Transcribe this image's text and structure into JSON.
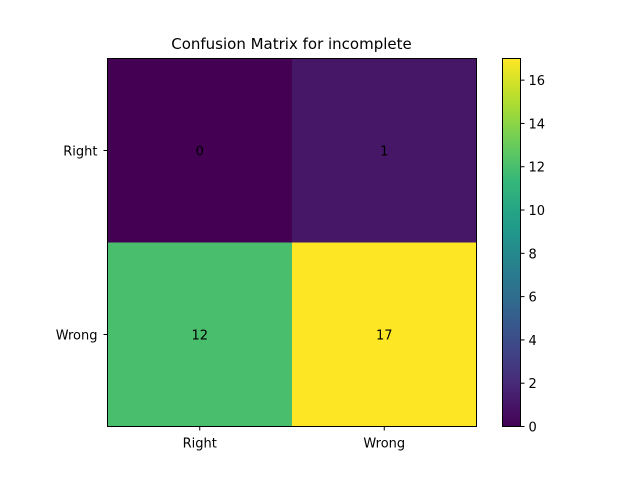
{
  "chart_data": {
    "type": "heatmap",
    "title": "Confusion Matrix for incomplete",
    "xlabel": "",
    "ylabel": "",
    "x_categories": [
      "Right",
      "Wrong"
    ],
    "y_categories": [
      "Right",
      "Wrong"
    ],
    "values": [
      [
        0,
        1
      ],
      [
        12,
        17
      ]
    ],
    "cell_labels": [
      [
        "0",
        "1"
      ],
      [
        "12",
        "17"
      ]
    ],
    "colormap": "viridis",
    "colorbar": {
      "vmin": 0,
      "vmax": 17,
      "ticks": [
        0,
        2,
        4,
        6,
        8,
        10,
        12,
        14,
        16
      ],
      "tick_labels": [
        "0",
        "2",
        "4",
        "6",
        "8",
        "10",
        "12",
        "14",
        "16"
      ]
    },
    "grid": false,
    "colors": {
      "viridis_stops": [
        "#440154",
        "#482878",
        "#3e4989",
        "#31688e",
        "#26828e",
        "#1f9e89",
        "#35b779",
        "#6ece58",
        "#b5de2b",
        "#fde725"
      ]
    }
  }
}
